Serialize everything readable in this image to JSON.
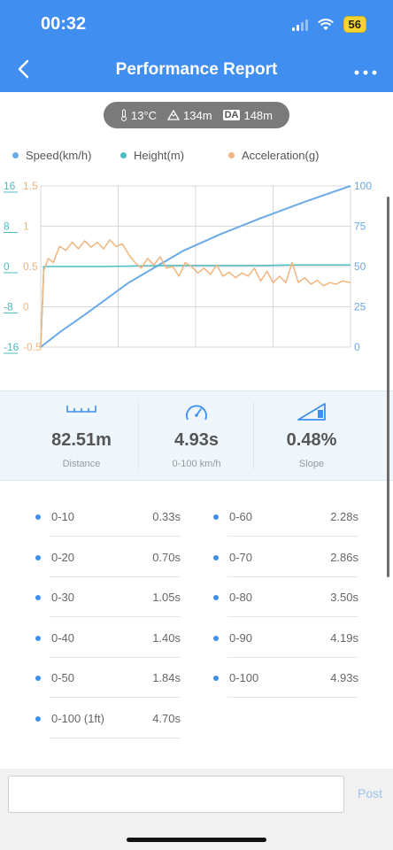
{
  "status_bar": {
    "time": "00:32",
    "battery": "56"
  },
  "header": {
    "title": "Performance Report",
    "back_icon": "chevron-left-icon",
    "more_icon": "more-horizontal-icon"
  },
  "conditions": {
    "temperature": "13°C",
    "altitude": "134m",
    "da_label": "DA",
    "density_altitude": "148m"
  },
  "legend": [
    {
      "label": "Speed(km/h)",
      "color": "#6aaae6"
    },
    {
      "label": "Height(m)",
      "color": "#4cbcc0"
    },
    {
      "label": "Acceleration(g)",
      "color": "#f0b47c"
    }
  ],
  "chart_data": {
    "type": "line",
    "x_range": [
      0,
      4.93
    ],
    "grid": true,
    "axes": {
      "height_left": {
        "ticks": [
          "16",
          "8",
          "0",
          "-8",
          "-16"
        ],
        "range": [
          -16,
          16
        ],
        "color": "#4cbcc0"
      },
      "accel_left": {
        "ticks": [
          "1.5",
          "1",
          "0.5",
          "0",
          "-0.5"
        ],
        "range": [
          -0.5,
          1.5
        ],
        "color": "#f0b47c"
      },
      "speed_right": {
        "ticks": [
          "100",
          "75",
          "50",
          "25",
          "0"
        ],
        "range": [
          0,
          100
        ],
        "color": "#6aaae6"
      }
    },
    "series": [
      {
        "name": "Speed(km/h)",
        "x": [
          0,
          0.33,
          0.7,
          1.05,
          1.4,
          1.84,
          2.28,
          2.86,
          3.5,
          4.19,
          4.93
        ],
        "values": [
          0,
          10,
          20,
          30,
          40,
          50,
          60,
          70,
          80,
          90,
          100
        ]
      },
      {
        "name": "Height(m)",
        "x": [
          0,
          0.05,
          0.5,
          1.0,
          1.5,
          2.0,
          2.5,
          3.0,
          3.5,
          4.0,
          4.5,
          4.93
        ],
        "values": [
          -16,
          0,
          0,
          0,
          0.1,
          0.2,
          0.2,
          0.2,
          0.2,
          0.3,
          0.3,
          0.3
        ]
      },
      {
        "name": "Acceleration(g)",
        "x": [
          0,
          0.05,
          0.12,
          0.2,
          0.3,
          0.4,
          0.5,
          0.6,
          0.7,
          0.8,
          0.9,
          1.0,
          1.1,
          1.2,
          1.3,
          1.4,
          1.5,
          1.6,
          1.7,
          1.8,
          1.9,
          2.0,
          2.1,
          2.2,
          2.3,
          2.4,
          2.5,
          2.6,
          2.7,
          2.8,
          2.9,
          3.0,
          3.1,
          3.2,
          3.3,
          3.4,
          3.5,
          3.6,
          3.7,
          3.8,
          3.9,
          4.0,
          4.1,
          4.2,
          4.3,
          4.4,
          4.5,
          4.6,
          4.7,
          4.8,
          4.93
        ],
        "values": [
          -0.5,
          0.45,
          0.6,
          0.55,
          0.75,
          0.7,
          0.8,
          0.72,
          0.82,
          0.74,
          0.8,
          0.72,
          0.83,
          0.75,
          0.78,
          0.65,
          0.55,
          0.48,
          0.6,
          0.52,
          0.62,
          0.48,
          0.5,
          0.38,
          0.55,
          0.5,
          0.42,
          0.48,
          0.4,
          0.52,
          0.38,
          0.43,
          0.36,
          0.42,
          0.38,
          0.48,
          0.32,
          0.44,
          0.3,
          0.38,
          0.3,
          0.55,
          0.3,
          0.36,
          0.28,
          0.33,
          0.26,
          0.3,
          0.28,
          0.32,
          0.3
        ]
      }
    ]
  },
  "stats": [
    {
      "icon": "ruler-icon",
      "value": "82.51m",
      "label": "Distance"
    },
    {
      "icon": "speedometer-icon",
      "value": "4.93s",
      "label": "0-100 km/h"
    },
    {
      "icon": "slope-icon",
      "value": "0.48%",
      "label": "Slope"
    }
  ],
  "splits": {
    "left": [
      {
        "name": "0-10",
        "time": "0.33s"
      },
      {
        "name": "0-20",
        "time": "0.70s"
      },
      {
        "name": "0-30",
        "time": "1.05s"
      },
      {
        "name": "0-40",
        "time": "1.40s"
      },
      {
        "name": "0-50",
        "time": "1.84s"
      },
      {
        "name": "0-100 (1ft)",
        "time": "4.70s"
      }
    ],
    "right": [
      {
        "name": "0-60",
        "time": "2.28s"
      },
      {
        "name": "0-70",
        "time": "2.86s"
      },
      {
        "name": "0-80",
        "time": "3.50s"
      },
      {
        "name": "0-90",
        "time": "4.19s"
      },
      {
        "name": "0-100",
        "time": "4.93s"
      }
    ]
  },
  "comment": {
    "placeholder": "",
    "post_label": "Post"
  }
}
